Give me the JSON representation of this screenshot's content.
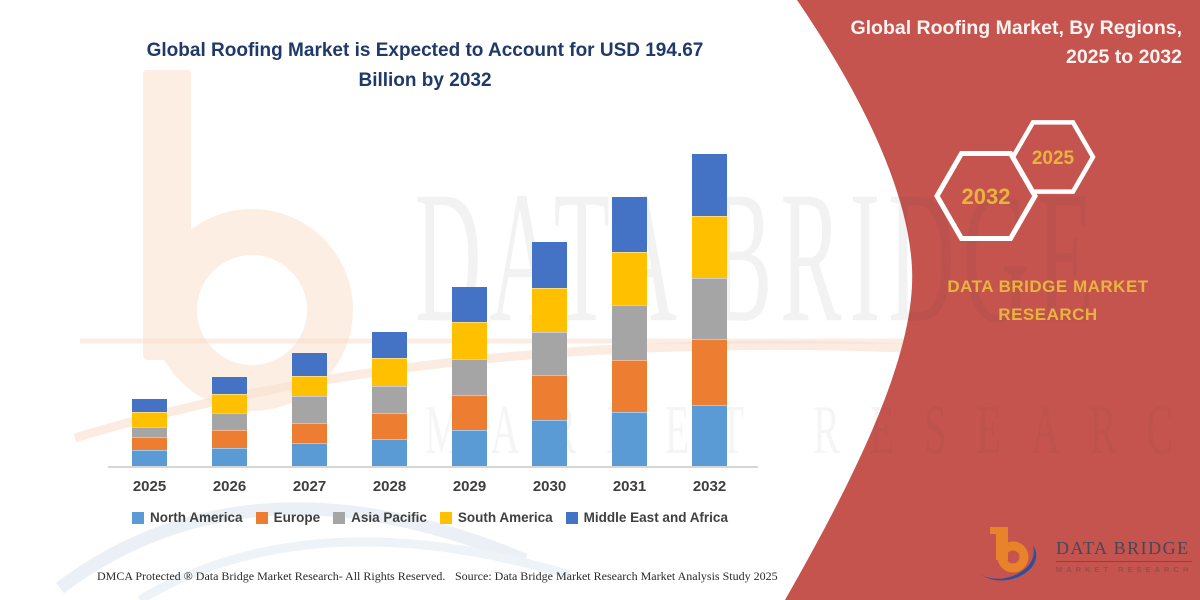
{
  "title": {
    "line1": "Global Roofing Market is Expected to Account for USD 194.67",
    "line2": "Billion by 2032"
  },
  "right_panel": {
    "title_line1": "Global Roofing Market, By Regions,",
    "title_line2": "2025 to 2032",
    "hexagon_back_label": "2032",
    "hexagon_front_label": "2025",
    "brand_line1": "DATA BRIDGE MARKET",
    "brand_line2": "RESEARCH",
    "bg_color": "#C5534E",
    "accent_gold": "#E9B43E"
  },
  "watermark": {
    "big": "DATA BRIDGE",
    "sub": "MARKET RESEARCH"
  },
  "logo": {
    "title": "DATA BRIDGE",
    "subtitle": "MARKET RESEARCH"
  },
  "footer": {
    "left": "DMCA Protected ® Data Bridge Market Research-  All Rights Reserved.",
    "right": "Source: Data Bridge Market Research  Market Analysis Study 2025"
  },
  "chart_data": {
    "type": "bar",
    "stacked": true,
    "title": "Global Roofing Market is Expected to Account for USD 194.67 Billion by 2032",
    "unit": "USD Billion",
    "categories": [
      "2025",
      "2026",
      "2027",
      "2028",
      "2029",
      "2030",
      "2031",
      "2032"
    ],
    "series": [
      {
        "name": "North America",
        "color": "#5B9BD5",
        "values": [
          10.0,
          11.0,
          14.2,
          16.7,
          22.5,
          28.7,
          33.9,
          38.1
        ]
      },
      {
        "name": "Europe",
        "color": "#ED7D31",
        "values": [
          8.3,
          11.4,
          12.5,
          16.2,
          21.8,
          28.1,
          32.3,
          41.0
        ]
      },
      {
        "name": "Asia Pacific",
        "color": "#A5A5A5",
        "values": [
          6.2,
          10.4,
          17.2,
          17.0,
          22.5,
          27.0,
          34.3,
          38.1
        ]
      },
      {
        "name": "South America",
        "color": "#FFC000",
        "values": [
          9.4,
          11.9,
          12.3,
          17.7,
          23.3,
          27.5,
          33.3,
          38.9
        ]
      },
      {
        "name": "Middle East and Africa",
        "color": "#4472C4",
        "values": [
          7.9,
          11.0,
          14.2,
          16.2,
          21.5,
          28.3,
          34.0,
          38.57
        ]
      }
    ],
    "totals_estimated": [
      41.8,
      55.7,
      70.4,
      83.8,
      111.6,
      139.6,
      167.8,
      194.67
    ],
    "annotations": [
      "USD 194.67 Billion by 2032"
    ],
    "xlabel": "",
    "ylabel": "",
    "ylim": [
      0,
      200
    ],
    "y_axis_visible": false,
    "grid": false,
    "legend_position": "bottom"
  }
}
